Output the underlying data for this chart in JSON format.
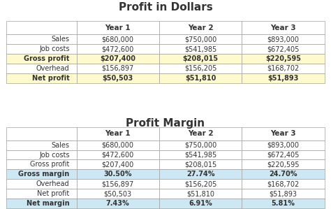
{
  "title1": "Profit in Dollars",
  "title2": "Profit Margin",
  "table1_headers": [
    "",
    "Year 1",
    "Year 2",
    "Year 3"
  ],
  "table1_rows": [
    [
      "Sales",
      "$680,000",
      "$750,000",
      "$893,000"
    ],
    [
      "Job costs",
      "$472,600",
      "$541,985",
      "$672,405"
    ],
    [
      "Gross profit",
      "$207,400",
      "$208,015",
      "$220,595"
    ],
    [
      "Overhead",
      "$156,897",
      "$156,205",
      "$168,702"
    ],
    [
      "Net profit",
      "$50,503",
      "$51,810",
      "$51,893"
    ]
  ],
  "table1_highlight_rows": [
    2,
    4
  ],
  "table1_highlight_color": "#FFFACD",
  "table1_header_color": "#FFFFFF",
  "table1_normal_color": "#FFFFFF",
  "table2_headers": [
    "",
    "Year 1",
    "Year 2",
    "Year 3"
  ],
  "table2_rows": [
    [
      "Sales",
      "$680,000",
      "$750,000",
      "$893,000"
    ],
    [
      "Job costs",
      "$472,600",
      "$541,985",
      "$672,405"
    ],
    [
      "Gross profit",
      "$207,400",
      "$208,015",
      "$220,595"
    ],
    [
      "Gross margin",
      "30.50%",
      "27.74%",
      "24.70%"
    ],
    [
      "Overhead",
      "$156,897",
      "$156,205",
      "$168,702"
    ],
    [
      "Net profit",
      "$50,503",
      "$51,810",
      "$51,893"
    ],
    [
      "Net margin",
      "7.43%",
      "6.91%",
      "5.81%"
    ]
  ],
  "table2_highlight_rows": [
    3,
    6
  ],
  "table2_highlight_color": "#CCE8F4",
  "table2_header_color": "#FFFFFF",
  "table2_normal_color": "#FFFFFF",
  "bg_color": "#FFFFFF",
  "border_color": "#A0A0A0",
  "text_color": "#333333",
  "highlight_text_bold": true,
  "title_fontsize": 11,
  "cell_fontsize": 7,
  "header_fontsize": 7.5
}
